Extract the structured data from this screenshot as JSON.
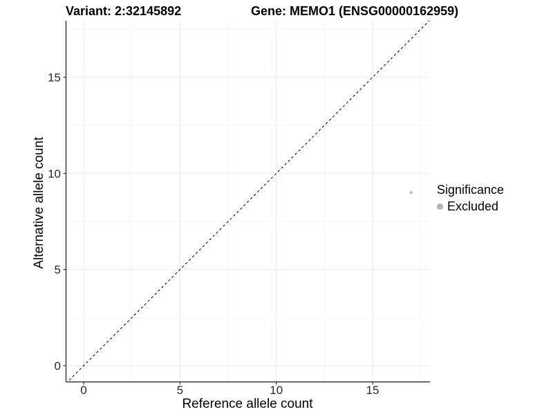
{
  "chart_data": {
    "type": "scatter",
    "title_left": "Variant: 2:32145892",
    "title_right": "Gene: MEMO1 (ENSG00000162959)",
    "xlabel": "Reference allele count",
    "ylabel": "Alternative allele count",
    "xlim": [
      -0.93,
      18.0
    ],
    "ylim": [
      -0.85,
      17.95
    ],
    "x_major_ticks": [
      0,
      5,
      10,
      15
    ],
    "y_major_ticks": [
      0,
      5,
      10,
      15
    ],
    "x_minor_ticks": [
      2.5,
      7.5,
      12.5,
      17.5
    ],
    "y_minor_ticks": [
      2.5,
      7.5,
      12.5,
      17.5
    ],
    "grid": "major+minor",
    "identity_line": {
      "slope": 1,
      "intercept": 0,
      "style": "dashed",
      "color": "#000000"
    },
    "series": [
      {
        "name": "Excluded",
        "color": "#c3c3c3",
        "points": [
          {
            "x": 17,
            "y": 9
          }
        ],
        "point_radius": 2.3
      }
    ],
    "legend": {
      "title": "Significance",
      "position": "right",
      "items": [
        {
          "label": "Excluded",
          "color": "#b4b4b4"
        }
      ]
    },
    "colors": {
      "axis_line": "#333333",
      "grid_major": "#e9e9e9",
      "grid_minor": "#f5f5f5",
      "tick_label": "#262626"
    }
  }
}
